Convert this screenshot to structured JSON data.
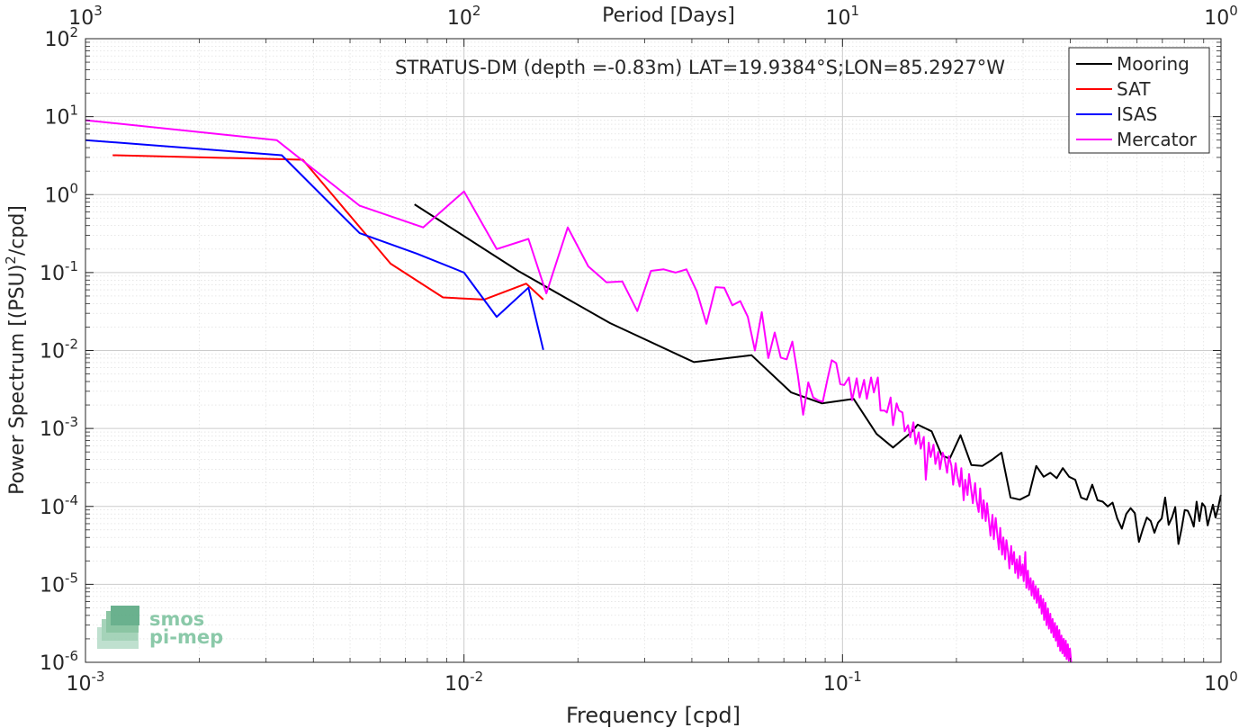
{
  "chart_data": {
    "type": "line",
    "title": "STRATUS-DM (depth =-0.83m) LAT=19.9384°S;LON=85.2927°W",
    "xlabel": "Frequency [cpd]",
    "ylabel": "Power Spectrum [(PSU)",
    "ylabel_sup": "2",
    "ylabel_tail": "/cpd]",
    "top_xlabel": "Period [Days]",
    "x_scale": "log",
    "y_scale": "log",
    "xlim": [
      0.001,
      1
    ],
    "ylim": [
      1e-06,
      100
    ],
    "grid": true,
    "legend_position": "top-right",
    "x_ticks": [
      {
        "value": 0.001,
        "base": "10",
        "exp": "-3"
      },
      {
        "value": 0.01,
        "base": "10",
        "exp": "-2"
      },
      {
        "value": 0.1,
        "base": "10",
        "exp": "-1"
      },
      {
        "value": 1,
        "base": "10",
        "exp": "0"
      }
    ],
    "top_ticks": [
      {
        "freq": 0.001,
        "base": "10",
        "exp": "3"
      },
      {
        "freq": 0.01,
        "base": "10",
        "exp": "2"
      },
      {
        "freq": 0.1,
        "base": "10",
        "exp": "1"
      },
      {
        "freq": 1,
        "base": "10",
        "exp": "0"
      }
    ],
    "y_ticks": [
      {
        "value": 100,
        "base": "10",
        "exp": "2"
      },
      {
        "value": 10,
        "base": "10",
        "exp": "1"
      },
      {
        "value": 1,
        "base": "10",
        "exp": "0"
      },
      {
        "value": 0.1,
        "base": "10",
        "exp": "-1"
      },
      {
        "value": 0.01,
        "base": "10",
        "exp": "-2"
      },
      {
        "value": 0.001,
        "base": "10",
        "exp": "-3"
      },
      {
        "value": 0.0001,
        "base": "10",
        "exp": "-4"
      },
      {
        "value": 1e-05,
        "base": "10",
        "exp": "-5"
      },
      {
        "value": 1e-06,
        "base": "10",
        "exp": "-6"
      }
    ],
    "series": [
      {
        "name": "Mooring",
        "color": "#000000",
        "points": [
          [
            0.0074,
            0.75
          ],
          [
            0.0139,
            0.105
          ],
          [
            0.0243,
            0.0225
          ],
          [
            0.0405,
            0.0071
          ],
          [
            0.0575,
            0.0087
          ],
          [
            0.0732,
            0.0029
          ],
          [
            0.0882,
            0.0021
          ],
          [
            0.107,
            0.0024
          ],
          [
            0.123,
            0.00085
          ],
          [
            0.136,
            0.00057
          ],
          [
            0.144,
            0.00072
          ],
          [
            0.152,
            0.00089
          ],
          [
            0.158,
            0.00112
          ],
          [
            0.172,
            0.00092
          ],
          [
            0.183,
            0.00045
          ],
          [
            0.192,
            0.00041
          ],
          [
            0.205,
            0.00082
          ],
          [
            0.219,
            0.00034
          ],
          [
            0.234,
            0.00033
          ],
          [
            0.249,
            0.0004
          ],
          [
            0.263,
            0.00049
          ],
          [
            0.278,
            0.00013
          ],
          [
            0.294,
            0.000122
          ],
          [
            0.311,
            0.00014
          ],
          [
            0.325,
            0.00033
          ],
          [
            0.34,
            0.00024
          ],
          [
            0.354,
            0.00027
          ],
          [
            0.368,
            0.00023
          ],
          [
            0.382,
            0.00031
          ],
          [
            0.397,
            0.00024
          ],
          [
            0.412,
            0.00022
          ],
          [
            0.427,
            0.00013
          ],
          [
            0.442,
            0.000122
          ],
          [
            0.457,
            0.00019
          ],
          [
            0.472,
            0.00012
          ],
          [
            0.487,
            0.000115
          ],
          [
            0.502,
            0.0001
          ],
          [
            0.517,
            0.000112
          ],
          [
            0.532,
            7e-05
          ],
          [
            0.547,
            5.2e-05
          ],
          [
            0.562,
            8e-05
          ],
          [
            0.577,
            9.5e-05
          ],
          [
            0.592,
            8.2e-05
          ],
          [
            0.607,
            3.5e-05
          ],
          [
            0.622,
            5.2e-05
          ],
          [
            0.637,
            7.2e-05
          ],
          [
            0.652,
            6.5e-05
          ],
          [
            0.667,
            4.6e-05
          ],
          [
            0.682,
            6.2e-05
          ],
          [
            0.697,
            7e-05
          ],
          [
            0.712,
            0.00013
          ],
          [
            0.727,
            5.8e-05
          ],
          [
            0.742,
            7.2e-05
          ],
          [
            0.757,
            9.8e-05
          ],
          [
            0.772,
            3.3e-05
          ],
          [
            0.787,
            5.2e-05
          ],
          [
            0.802,
            9e-05
          ],
          [
            0.817,
            8.8e-05
          ],
          [
            0.832,
            7.2e-05
          ],
          [
            0.847,
            5.5e-05
          ],
          [
            0.862,
            0.000115
          ],
          [
            0.877,
            6.5e-05
          ],
          [
            0.892,
            0.00011
          ],
          [
            0.907,
            9.9e-05
          ],
          [
            0.922,
            5.7e-05
          ],
          [
            0.937,
            7.8e-05
          ],
          [
            0.952,
            0.000105
          ],
          [
            0.967,
            7.2e-05
          ],
          [
            0.982,
            9.5e-05
          ],
          [
            0.997,
            0.000135
          ],
          [
            1.0,
            0.00014
          ]
        ]
      },
      {
        "name": "SAT",
        "color": "#ff0000",
        "points": [
          [
            0.00118,
            3.2
          ],
          [
            0.00375,
            2.8
          ],
          [
            0.0064,
            0.13
          ],
          [
            0.0088,
            0.048
          ],
          [
            0.0113,
            0.045
          ],
          [
            0.0146,
            0.072
          ],
          [
            0.0162,
            0.045
          ]
        ]
      },
      {
        "name": "ISAS",
        "color": "#0000ff",
        "points": [
          [
            0.001,
            5.0
          ],
          [
            0.0033,
            3.2
          ],
          [
            0.0053,
            0.32
          ],
          [
            0.0075,
            0.175
          ],
          [
            0.01,
            0.1
          ],
          [
            0.0122,
            0.027
          ],
          [
            0.0148,
            0.064
          ],
          [
            0.0162,
            0.0102
          ]
        ]
      },
      {
        "name": "Mercator",
        "color": "#ff00ff",
        "points": [
          [
            0.001,
            9.0
          ],
          [
            0.0032,
            5.0
          ],
          [
            0.0053,
            0.72
          ],
          [
            0.0078,
            0.38
          ],
          [
            0.01,
            1.1
          ],
          [
            0.0122,
            0.2
          ],
          [
            0.0148,
            0.27
          ],
          [
            0.0165,
            0.054
          ],
          [
            0.0188,
            0.38
          ],
          [
            0.0213,
            0.12
          ],
          [
            0.0238,
            0.075
          ],
          [
            0.0262,
            0.077
          ],
          [
            0.0287,
            0.032
          ],
          [
            0.0312,
            0.105
          ],
          [
            0.0337,
            0.11
          ],
          [
            0.0362,
            0.1
          ],
          [
            0.0387,
            0.11
          ],
          [
            0.0412,
            0.058
          ],
          [
            0.0437,
            0.022
          ],
          [
            0.0462,
            0.065
          ],
          [
            0.0487,
            0.064
          ],
          [
            0.0512,
            0.038
          ],
          [
            0.0537,
            0.043
          ],
          [
            0.0562,
            0.027
          ],
          [
            0.0587,
            0.01
          ],
          [
            0.0612,
            0.031
          ],
          [
            0.0637,
            0.008
          ],
          [
            0.0662,
            0.017
          ],
          [
            0.0687,
            0.0081
          ],
          [
            0.0712,
            0.0077
          ],
          [
            0.0737,
            0.013
          ],
          [
            0.0762,
            0.0048
          ],
          [
            0.0787,
            0.0015
          ],
          [
            0.0812,
            0.0039
          ],
          [
            0.0837,
            0.0025
          ],
          [
            0.0862,
            0.0023
          ],
          [
            0.0887,
            0.0022
          ],
          [
            0.0912,
            0.0042
          ],
          [
            0.0937,
            0.0075
          ],
          [
            0.0962,
            0.0069
          ],
          [
            0.0987,
            0.0037
          ],
          [
            0.101,
            0.0036
          ],
          [
            0.104,
            0.0045
          ],
          [
            0.106,
            0.0023
          ],
          [
            0.109,
            0.0044
          ],
          [
            0.111,
            0.0025
          ],
          [
            0.114,
            0.0042
          ],
          [
            0.116,
            0.0024
          ],
          [
            0.119,
            0.0045
          ],
          [
            0.121,
            0.0029
          ],
          [
            0.124,
            0.0045
          ],
          [
            0.126,
            0.0017
          ],
          [
            0.129,
            0.0017
          ],
          [
            0.131,
            0.0016
          ],
          [
            0.134,
            0.0025
          ],
          [
            0.136,
            0.0011
          ],
          [
            0.139,
            0.0021
          ],
          [
            0.141,
            0.0017
          ],
          [
            0.144,
            0.0016
          ],
          [
            0.146,
            0.00092
          ],
          [
            0.149,
            0.0011
          ],
          [
            0.151,
            0.00077
          ],
          [
            0.154,
            0.0012
          ],
          [
            0.156,
            0.00063
          ],
          [
            0.159,
            0.00089
          ],
          [
            0.161,
            0.00055
          ],
          [
            0.164,
            0.00078
          ],
          [
            0.166,
            0.00022
          ],
          [
            0.169,
            0.00066
          ],
          [
            0.171,
            0.00043
          ],
          [
            0.174,
            0.00062
          ],
          [
            0.176,
            0.00035
          ],
          [
            0.179,
            0.0005
          ],
          [
            0.181,
            0.0003
          ],
          [
            0.184,
            0.00049
          ],
          [
            0.186,
            0.00042
          ],
          [
            0.189,
            0.00027
          ],
          [
            0.191,
            0.00044
          ],
          [
            0.194,
            0.00033
          ],
          [
            0.196,
            0.00019
          ],
          [
            0.199,
            0.00036
          ],
          [
            0.201,
            0.00025
          ],
          [
            0.204,
            0.00018
          ],
          [
            0.206,
            0.00031
          ],
          [
            0.209,
            0.00012
          ],
          [
            0.211,
            0.00022
          ],
          [
            0.214,
            0.00014
          ],
          [
            0.216,
            0.00026
          ],
          [
            0.219,
            0.00016
          ],
          [
            0.221,
            0.00011
          ],
          [
            0.224,
            0.0002
          ],
          [
            0.226,
            0.00012
          ],
          [
            0.229,
            8.5e-05
          ],
          [
            0.231,
            0.00017
          ],
          [
            0.234,
            7e-05
          ],
          [
            0.236,
            0.00012
          ],
          [
            0.239,
            6.5e-05
          ],
          [
            0.241,
            0.00011
          ],
          [
            0.244,
            6.2e-05
          ],
          [
            0.246,
            4.2e-05
          ],
          [
            0.249,
            7.8e-05
          ],
          [
            0.251,
            3.8e-05
          ],
          [
            0.254,
            7.1e-05
          ],
          [
            0.256,
            4.7e-05
          ],
          [
            0.259,
            2.8e-05
          ],
          [
            0.261,
            5.3e-05
          ],
          [
            0.264,
            2.4e-05
          ],
          [
            0.266,
            4e-05
          ],
          [
            0.269,
            2.1e-05
          ],
          [
            0.271,
            3.7e-05
          ],
          [
            0.274,
            2.5e-05
          ],
          [
            0.276,
            1.6e-05
          ],
          [
            0.279,
            3.1e-05
          ],
          [
            0.281,
            1.8e-05
          ],
          [
            0.284,
            2.6e-05
          ],
          [
            0.286,
            1.4e-05
          ],
          [
            0.289,
            2.1e-05
          ],
          [
            0.291,
            1.2e-05
          ],
          [
            0.294,
            2.3e-05
          ],
          [
            0.296,
            1.3e-05
          ],
          [
            0.299,
            1.8e-05
          ],
          [
            0.301,
            1.1e-05
          ],
          [
            0.304,
            2.6e-05
          ],
          [
            0.306,
            9e-06
          ],
          [
            0.309,
            1.5e-05
          ],
          [
            0.311,
            8.5e-06
          ],
          [
            0.314,
            1.2e-05
          ],
          [
            0.316,
            7.2e-06
          ],
          [
            0.319,
            1.1e-05
          ],
          [
            0.321,
            6.5e-06
          ],
          [
            0.324,
            9.5e-06
          ],
          [
            0.326,
            5.8e-06
          ],
          [
            0.329,
            8.8e-06
          ],
          [
            0.331,
            5e-06
          ],
          [
            0.334,
            7.2e-06
          ],
          [
            0.336,
            4.2e-06
          ],
          [
            0.339,
            6.5e-06
          ],
          [
            0.341,
            3.5e-06
          ],
          [
            0.344,
            5.8e-06
          ],
          [
            0.346,
            3e-06
          ],
          [
            0.349,
            4.9e-06
          ],
          [
            0.351,
            2.7e-06
          ],
          [
            0.354,
            4.2e-06
          ],
          [
            0.356,
            2.4e-06
          ],
          [
            0.359,
            3.6e-06
          ],
          [
            0.361,
            2.1e-06
          ],
          [
            0.364,
            3.2e-06
          ],
          [
            0.366,
            1.9e-06
          ],
          [
            0.369,
            2.9e-06
          ],
          [
            0.371,
            1.6e-06
          ],
          [
            0.374,
            2.6e-06
          ],
          [
            0.376,
            1.4e-06
          ],
          [
            0.379,
            2.2e-06
          ],
          [
            0.381,
            1.3e-06
          ],
          [
            0.384,
            2e-06
          ],
          [
            0.386,
            1.2e-06
          ],
          [
            0.389,
            1.9e-06
          ],
          [
            0.391,
            1.1e-06
          ],
          [
            0.394,
            1.7e-06
          ],
          [
            0.396,
            1.05e-06
          ],
          [
            0.399,
            1.5e-06
          ],
          [
            0.402,
            1e-06
          ]
        ]
      }
    ]
  },
  "watermark": {
    "line1": "smos",
    "line2": "pi-mep"
  }
}
